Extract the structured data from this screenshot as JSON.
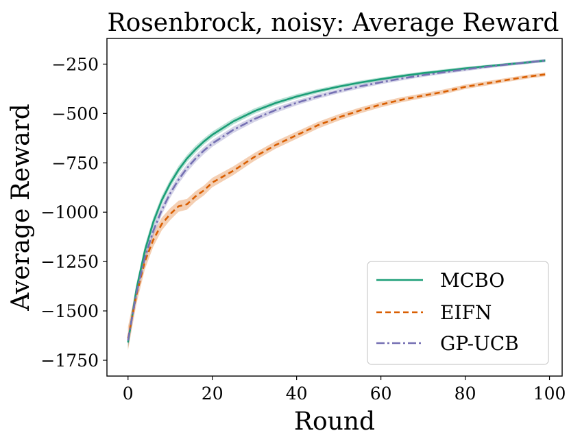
{
  "chart_data": {
    "type": "line",
    "title": "Rosenbrock, noisy: Average Reward",
    "xlabel": "Round",
    "ylabel": "Average Reward",
    "xlim": [
      -5,
      103
    ],
    "ylim": [
      -1830,
      -120
    ],
    "xticks": [
      0,
      20,
      40,
      60,
      80,
      100
    ],
    "xtick_labels": [
      "0",
      "20",
      "40",
      "60",
      "80",
      "100"
    ],
    "yticks": [
      -250,
      -500,
      -750,
      -1000,
      -1250,
      -1500,
      -1750
    ],
    "ytick_labels": [
      "−250",
      "−500",
      "−750",
      "−1000",
      "−1250",
      "−1500",
      "−1750"
    ],
    "legend_position": "lower-right",
    "x": [
      0,
      2,
      4,
      6,
      8,
      10,
      12,
      14,
      16,
      18,
      20,
      25,
      30,
      35,
      40,
      45,
      50,
      55,
      60,
      65,
      70,
      75,
      80,
      85,
      90,
      95,
      99
    ],
    "series": [
      {
        "name": "MCBO",
        "color": "#1b9e77",
        "dash": "solid",
        "values": [
          -1660,
          -1390,
          -1195,
          -1050,
          -940,
          -855,
          -785,
          -728,
          -682,
          -642,
          -608,
          -540,
          -488,
          -447,
          -414,
          -387,
          -364,
          -344,
          -326,
          -310,
          -296,
          -284,
          -272,
          -261,
          -251,
          -241,
          -232
        ],
        "band": [
          30,
          28,
          26,
          24,
          22,
          20,
          20,
          18,
          18,
          16,
          16,
          15,
          14,
          13,
          12,
          11,
          10,
          10,
          9,
          9,
          8,
          8,
          8,
          7,
          7,
          7,
          7
        ]
      },
      {
        "name": "EIFN",
        "color": "#d95f02",
        "dash": "dashed",
        "values": [
          -1640,
          -1420,
          -1250,
          -1140,
          -1060,
          -1010,
          -970,
          -960,
          -920,
          -890,
          -850,
          -790,
          -720,
          -660,
          -610,
          -560,
          -520,
          -485,
          -455,
          -430,
          -410,
          -390,
          -365,
          -348,
          -330,
          -313,
          -302
        ],
        "band": [
          60,
          45,
          40,
          35,
          32,
          30,
          28,
          27,
          26,
          25,
          24,
          22,
          20,
          19,
          18,
          17,
          16,
          15,
          14,
          13,
          12,
          12,
          11,
          11,
          10,
          10,
          10
        ]
      },
      {
        "name": "GP-UCB",
        "color": "#7570b3",
        "dash": "dashdot",
        "values": [
          -1650,
          -1410,
          -1230,
          -1095,
          -990,
          -905,
          -835,
          -777,
          -729,
          -688,
          -652,
          -583,
          -528,
          -483,
          -446,
          -414,
          -387,
          -363,
          -342,
          -323,
          -306,
          -291,
          -277,
          -264,
          -252,
          -241,
          -232
        ],
        "band": [
          32,
          30,
          28,
          26,
          24,
          22,
          21,
          20,
          19,
          18,
          17,
          16,
          15,
          14,
          13,
          12,
          11,
          11,
          10,
          10,
          9,
          9,
          9,
          8,
          8,
          8,
          8
        ]
      }
    ]
  }
}
